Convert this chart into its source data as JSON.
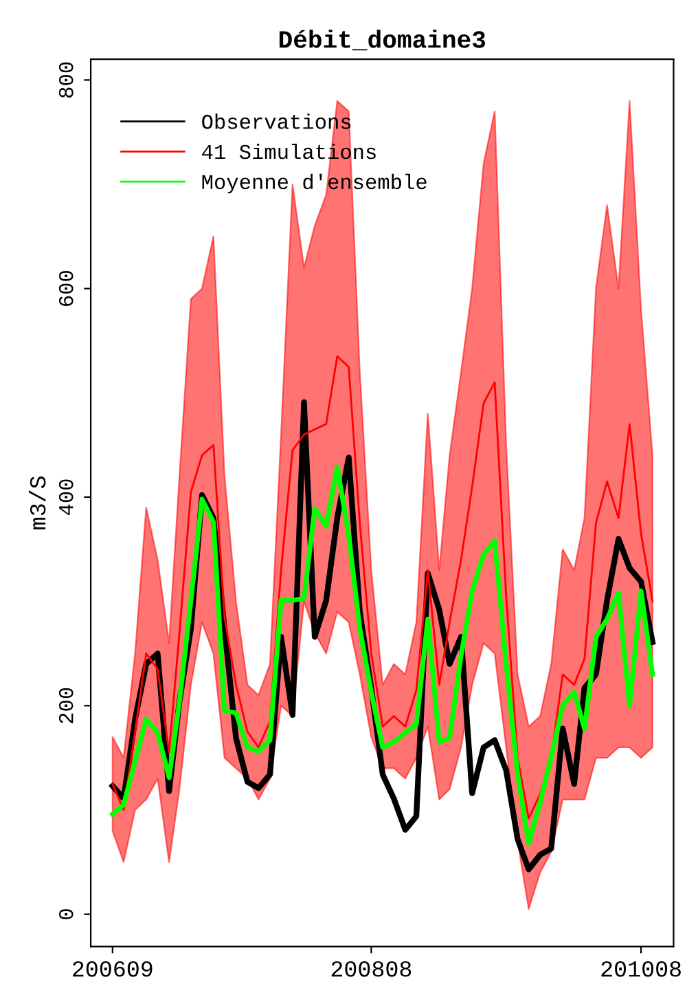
{
  "chart_data": {
    "type": "line",
    "title": "Débit_domaine3",
    "ylabel": "m3/S",
    "x": [
      "2006-09",
      "2006-10",
      "2006-11",
      "2006-12",
      "2007-01",
      "2007-02",
      "2007-03",
      "2007-04",
      "2007-05",
      "2007-06",
      "2007-07",
      "2007-08",
      "2007-09",
      "2007-10",
      "2007-11",
      "2007-12",
      "2008-01",
      "2008-02",
      "2008-03",
      "2008-04",
      "2008-05",
      "2008-06",
      "2008-07",
      "2008-08",
      "2008-09",
      "2008-10",
      "2008-11",
      "2008-12",
      "2009-01",
      "2009-02",
      "2009-03",
      "2009-04",
      "2009-05",
      "2009-06",
      "2009-07",
      "2009-08",
      "2009-09",
      "2009-10",
      "2009-11",
      "2009-12",
      "2010-01",
      "2010-02",
      "2010-03",
      "2010-04",
      "2010-05",
      "2010-06",
      "2010-07",
      "2010-08",
      "2010-09"
    ],
    "xlim": [
      "2006-07-04",
      "2010-10-28"
    ],
    "xticks": [
      {
        "value": "2006-09",
        "label": "200609"
      },
      {
        "value": "2008-08",
        "label": "200808"
      },
      {
        "value": "2010-08",
        "label": "201008"
      }
    ],
    "ylim": [
      -31,
      820
    ],
    "yticks": [
      0,
      200,
      400,
      600,
      800
    ],
    "series": [
      {
        "name": "Observations",
        "color": "#000000",
        "values": [
          123,
          111,
          187,
          240,
          250,
          118,
          204,
          274,
          402,
          380,
          274,
          169,
          127,
          121,
          134,
          266,
          191,
          491,
          266,
          301,
          380,
          438,
          290,
          217,
          134,
          111,
          81,
          94,
          327,
          292,
          240,
          266,
          116,
          160,
          167,
          138,
          72,
          43,
          57,
          63,
          178,
          125,
          217,
          230,
          301,
          360,
          332,
          319,
          261
        ]
      },
      {
        "name": "41 Simulations",
        "color": "#ff0000",
        "values": [
          125,
          100,
          175,
          250,
          235,
          155,
          270,
          405,
          440,
          450,
          285,
          220,
          175,
          160,
          185,
          330,
          445,
          460,
          465,
          470,
          535,
          525,
          375,
          250,
          180,
          190,
          180,
          215,
          330,
          220,
          280,
          340,
          410,
          490,
          510,
          305,
          150,
          92,
          115,
          150,
          230,
          220,
          245,
          375,
          415,
          380,
          470,
          365,
          300
        ],
        "lower": [
          80,
          50,
          100,
          110,
          130,
          50,
          120,
          220,
          280,
          250,
          150,
          140,
          130,
          110,
          130,
          200,
          190,
          300,
          270,
          250,
          290,
          280,
          230,
          170,
          140,
          140,
          130,
          150,
          180,
          110,
          120,
          160,
          220,
          260,
          250,
          160,
          70,
          5,
          40,
          60,
          110,
          110,
          110,
          150,
          150,
          160,
          160,
          150,
          160
        ],
        "upper": [
          170,
          150,
          250,
          390,
          340,
          260,
          420,
          590,
          600,
          650,
          420,
          300,
          220,
          210,
          240,
          460,
          700,
          620,
          660,
          690,
          780,
          770,
          520,
          330,
          220,
          240,
          230,
          280,
          480,
          330,
          440,
          520,
          600,
          720,
          770,
          450,
          230,
          180,
          190,
          240,
          350,
          330,
          380,
          600,
          680,
          600,
          780,
          580,
          440
        ]
      },
      {
        "name": "Moyenne d'ensemble",
        "color": "#00ff00",
        "values": [
          96,
          105,
          147,
          187,
          174,
          131,
          204,
          301,
          398,
          376,
          195,
          193,
          160,
          156,
          167,
          301,
          301,
          303,
          389,
          372,
          429,
          363,
          274,
          213,
          160,
          165,
          174,
          182,
          283,
          165,
          169,
          248,
          310,
          345,
          358,
          240,
          134,
          68,
          107,
          151,
          200,
          213,
          178,
          266,
          283,
          308,
          200,
          310,
          230
        ]
      }
    ],
    "legend": "top left",
    "grid": false
  }
}
